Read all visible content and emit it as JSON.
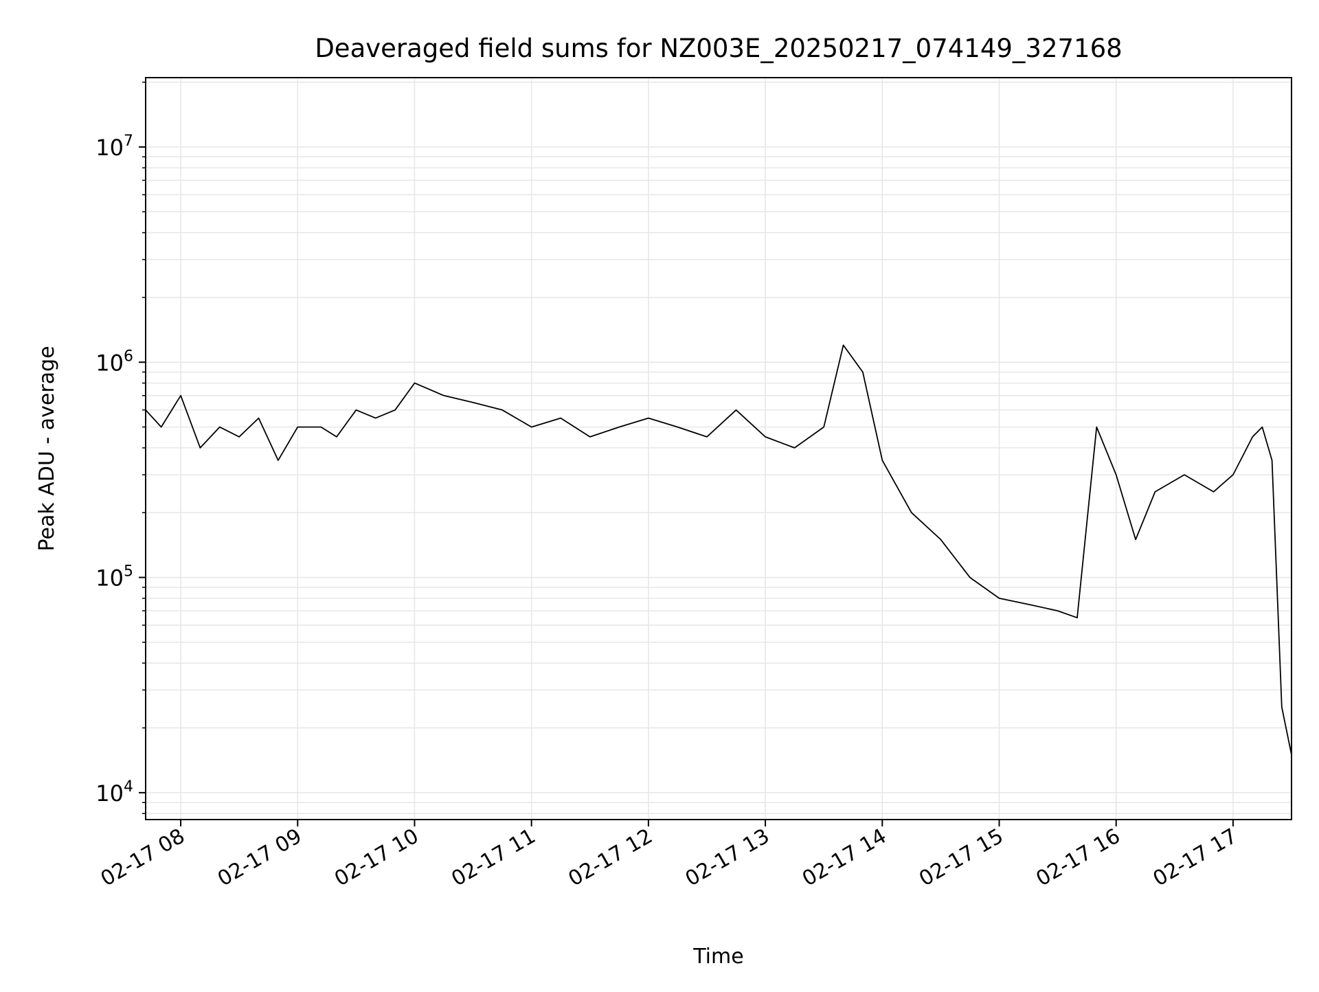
{
  "chart_data": {
    "type": "line",
    "title": "Deaveraged field sums for NZ003E_20250217_074149_327168",
    "xlabel": "Time",
    "ylabel": "Peak ADU - average",
    "x_range": [
      "2025-02-17 07:42",
      "2025-02-17 17:30"
    ],
    "x_ticks": [
      "02-17 08",
      "02-17 09",
      "02-17 10",
      "02-17 11",
      "02-17 12",
      "02-17 13",
      "02-17 14",
      "02-17 15",
      "02-17 16",
      "02-17 17"
    ],
    "y_scale": "log",
    "ylim": [
      7500,
      21000000
    ],
    "y_ticks": [
      {
        "value": 10000,
        "base": "10",
        "exp": "4"
      },
      {
        "value": 100000,
        "base": "10",
        "exp": "5"
      },
      {
        "value": 1000000,
        "base": "10",
        "exp": "6"
      },
      {
        "value": 10000000,
        "base": "10",
        "exp": "7"
      }
    ],
    "grid": true,
    "line_color": "#000000",
    "grid_color": "#e6e6e6",
    "series": [
      {
        "x": [
          "2025-02-17 07:42",
          "2025-02-17 07:50",
          "2025-02-17 08:00",
          "2025-02-17 08:10",
          "2025-02-17 08:20",
          "2025-02-17 08:30",
          "2025-02-17 08:40",
          "2025-02-17 08:50",
          "2025-02-17 09:00",
          "2025-02-17 09:12",
          "2025-02-17 09:20",
          "2025-02-17 09:30",
          "2025-02-17 09:40",
          "2025-02-17 09:50",
          "2025-02-17 10:00",
          "2025-02-17 10:15",
          "2025-02-17 10:30",
          "2025-02-17 10:45",
          "2025-02-17 11:00",
          "2025-02-17 11:15",
          "2025-02-17 11:30",
          "2025-02-17 11:45",
          "2025-02-17 12:00",
          "2025-02-17 12:15",
          "2025-02-17 12:30",
          "2025-02-17 12:45",
          "2025-02-17 13:00",
          "2025-02-17 13:15",
          "2025-02-17 13:30",
          "2025-02-17 13:40",
          "2025-02-17 13:50",
          "2025-02-17 14:00",
          "2025-02-17 14:15",
          "2025-02-17 14:30",
          "2025-02-17 14:45",
          "2025-02-17 15:00",
          "2025-02-17 15:15",
          "2025-02-17 15:30",
          "2025-02-17 15:40",
          "2025-02-17 15:50",
          "2025-02-17 16:00",
          "2025-02-17 16:10",
          "2025-02-17 16:20",
          "2025-02-17 16:35",
          "2025-02-17 16:50",
          "2025-02-17 17:00",
          "2025-02-17 17:10",
          "2025-02-17 17:15",
          "2025-02-17 17:20",
          "2025-02-17 17:25",
          "2025-02-17 17:30"
        ],
        "values": [
          600000,
          500000,
          700000,
          400000,
          500000,
          450000,
          550000,
          350000,
          500000,
          500000,
          450000,
          600000,
          550000,
          600000,
          800000,
          700000,
          650000,
          600000,
          500000,
          550000,
          450000,
          500000,
          550000,
          500000,
          450000,
          600000,
          450000,
          400000,
          500000,
          1200000,
          900000,
          350000,
          200000,
          150000,
          100000,
          80000,
          75000,
          70000,
          65000,
          500000,
          300000,
          150000,
          250000,
          300000,
          250000,
          300000,
          450000,
          500000,
          350000,
          25000,
          15000
        ]
      }
    ]
  }
}
